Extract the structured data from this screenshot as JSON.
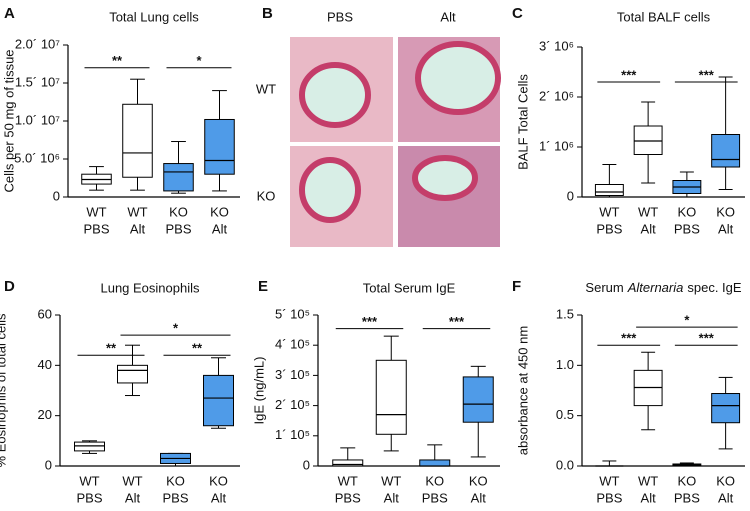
{
  "chart_data": [
    {
      "type": "box",
      "panel": "A",
      "title": "Total Lung cells",
      "ylabel": "Cells per 50 mg of tissue",
      "categories": [
        [
          "WT",
          "PBS"
        ],
        [
          "WT",
          "Alt"
        ],
        [
          "KO",
          "PBS"
        ],
        [
          "KO",
          "Alt"
        ]
      ],
      "colors": [
        "#ffffff",
        "#ffffff",
        "#4f9be8",
        "#4f9be8"
      ],
      "boxes": [
        {
          "min": 900000,
          "q1": 1700000,
          "median": 2300000,
          "q3": 3000000,
          "max": 4000000
        },
        {
          "min": 900000,
          "q1": 2600000,
          "median": 5800000,
          "q3": 12200000,
          "max": 15500000
        },
        {
          "min": 500000,
          "q1": 800000,
          "median": 3300000,
          "q3": 4400000,
          "max": 7300000
        },
        {
          "min": 800000,
          "q1": 3000000,
          "median": 4800000,
          "q3": 10200000,
          "max": 14000000
        }
      ],
      "ylim": [
        0,
        20000000
      ],
      "yticks": [
        0,
        {
          "value": 5000000,
          "label": "5.0´ 10⁶"
        },
        {
          "value": 10000000,
          "label": "1.0´ 10⁷"
        },
        {
          "value": 15000000,
          "label": "1.5´ 10⁷"
        },
        {
          "value": 20000000,
          "label": "2.0´ 10⁷"
        }
      ],
      "significance": [
        {
          "groups": [
            0,
            1
          ],
          "y": 17000000,
          "label": "**"
        },
        {
          "groups": [
            2,
            3
          ],
          "y": 17000000,
          "label": "*"
        }
      ]
    },
    {
      "type": "image",
      "panel": "B",
      "columns": [
        "PBS",
        "Alt"
      ],
      "rows": [
        "WT",
        "KO"
      ]
    },
    {
      "type": "box",
      "panel": "C",
      "title": "Total BALF cells",
      "ylabel": "BALF Total Cells",
      "categories": [
        [
          "WT",
          "PBS"
        ],
        [
          "WT",
          "Alt"
        ],
        [
          "KO",
          "PBS"
        ],
        [
          "KO",
          "Alt"
        ]
      ],
      "colors": [
        "#ffffff",
        "#ffffff",
        "#4f9be8",
        "#4f9be8"
      ],
      "boxes": [
        {
          "min": 0,
          "q1": 30000,
          "median": 100000,
          "q3": 250000,
          "max": 650000
        },
        {
          "min": 280000,
          "q1": 850000,
          "median": 1120000,
          "q3": 1420000,
          "max": 1900000
        },
        {
          "min": 0,
          "q1": 70000,
          "median": 200000,
          "q3": 330000,
          "max": 500000
        },
        {
          "min": 150000,
          "q1": 600000,
          "median": 750000,
          "q3": 1250000,
          "max": 2400000
        }
      ],
      "ylim": [
        0,
        3000000
      ],
      "yticks": [
        0,
        {
          "value": 1000000,
          "label": "1´ 10⁶"
        },
        {
          "value": 2000000,
          "label": "2´ 10⁶"
        },
        {
          "value": 3000000,
          "label": "3´ 10⁶"
        }
      ],
      "significance": [
        {
          "groups": [
            0,
            1
          ],
          "y": 2300000,
          "label": "***"
        },
        {
          "groups": [
            2,
            3
          ],
          "y": 2300000,
          "label": "***"
        }
      ]
    },
    {
      "type": "box",
      "panel": "D",
      "title": "Lung Eosinophils",
      "ylabel": "% Eosinophils of total cells",
      "categories": [
        [
          "WT",
          "PBS"
        ],
        [
          "WT",
          "Alt"
        ],
        [
          "KO",
          "PBS"
        ],
        [
          "KO",
          "Alt"
        ]
      ],
      "colors": [
        "#ffffff",
        "#ffffff",
        "#4f9be8",
        "#4f9be8"
      ],
      "boxes": [
        {
          "min": 5,
          "q1": 6,
          "median": 8,
          "q3": 9.5,
          "max": 10
        },
        {
          "min": 28,
          "q1": 33,
          "median": 38,
          "q3": 40,
          "max": 48
        },
        {
          "min": 0,
          "q1": 1,
          "median": 3,
          "q3": 5,
          "max": 5
        },
        {
          "min": 15,
          "q1": 16,
          "median": 27,
          "q3": 36,
          "max": 43
        }
      ],
      "ylim": [
        0,
        60
      ],
      "yticks": [
        0,
        20,
        40,
        60
      ],
      "significance": [
        {
          "groups": [
            0,
            1
          ],
          "y": 44,
          "label": "**"
        },
        {
          "groups": [
            2,
            3
          ],
          "y": 44,
          "label": "**"
        },
        {
          "groups": [
            1,
            3
          ],
          "y": 52,
          "label": "*"
        }
      ]
    },
    {
      "type": "box",
      "panel": "E",
      "title": "Total Serum IgE",
      "ylabel": "IgE (ng/mL)",
      "categories": [
        [
          "WT",
          "PBS"
        ],
        [
          "WT",
          "Alt"
        ],
        [
          "KO",
          "PBS"
        ],
        [
          "KO",
          "Alt"
        ]
      ],
      "colors": [
        "#ffffff",
        "#ffffff",
        "#4f9be8",
        "#4f9be8"
      ],
      "boxes": [
        {
          "min": 0,
          "q1": 0,
          "median": 5000,
          "q3": 20000,
          "max": 60000
        },
        {
          "min": 50000,
          "q1": 105000,
          "median": 170000,
          "q3": 350000,
          "max": 430000
        },
        {
          "min": 0,
          "q1": 0,
          "median": 0,
          "q3": 20000,
          "max": 70000
        },
        {
          "min": 30000,
          "q1": 145000,
          "median": 205000,
          "q3": 295000,
          "max": 330000
        }
      ],
      "ylim": [
        0,
        500000
      ],
      "yticks": [
        0,
        {
          "value": 100000,
          "label": "1´ 10⁵"
        },
        {
          "value": 200000,
          "label": "2´ 10⁵"
        },
        {
          "value": 300000,
          "label": "3´ 10⁵"
        },
        {
          "value": 400000,
          "label": "4´ 10⁵"
        },
        {
          "value": 500000,
          "label": "5´ 10⁵"
        }
      ],
      "significance": [
        {
          "groups": [
            0,
            1
          ],
          "y": 455000,
          "label": "***"
        },
        {
          "groups": [
            2,
            3
          ],
          "y": 455000,
          "label": "***"
        }
      ]
    },
    {
      "type": "box",
      "panel": "F",
      "title": [
        "Serum",
        "Alternaria",
        "spec. IgE"
      ],
      "ylabel": "absorbance at 450 nm",
      "categories": [
        [
          "WT",
          "PBS"
        ],
        [
          "WT",
          "Alt"
        ],
        [
          "KO",
          "PBS"
        ],
        [
          "KO",
          "Alt"
        ]
      ],
      "colors": [
        "#ffffff",
        "#ffffff",
        "#4f9be8",
        "#4f9be8"
      ],
      "boxes": [
        {
          "min": 0,
          "q1": 0,
          "median": 0,
          "q3": 0,
          "max": 0.05
        },
        {
          "min": 0.36,
          "q1": 0.6,
          "median": 0.78,
          "q3": 0.95,
          "max": 1.13
        },
        {
          "min": 0,
          "q1": 0,
          "median": 0.01,
          "q3": 0.02,
          "max": 0.03
        },
        {
          "min": 0.17,
          "q1": 0.43,
          "median": 0.6,
          "q3": 0.72,
          "max": 0.88
        }
      ],
      "ylim": [
        0,
        1.5
      ],
      "yticks": [
        {
          "value": 0,
          "label": "0.0"
        },
        0.5,
        {
          "value": 1,
          "label": "1.0"
        },
        1.5
      ],
      "significance": [
        {
          "groups": [
            0,
            1
          ],
          "y": 1.2,
          "label": "***"
        },
        {
          "groups": [
            2,
            3
          ],
          "y": 1.2,
          "label": "***"
        },
        {
          "groups": [
            1,
            3
          ],
          "y": 1.38,
          "label": "*"
        }
      ]
    }
  ]
}
